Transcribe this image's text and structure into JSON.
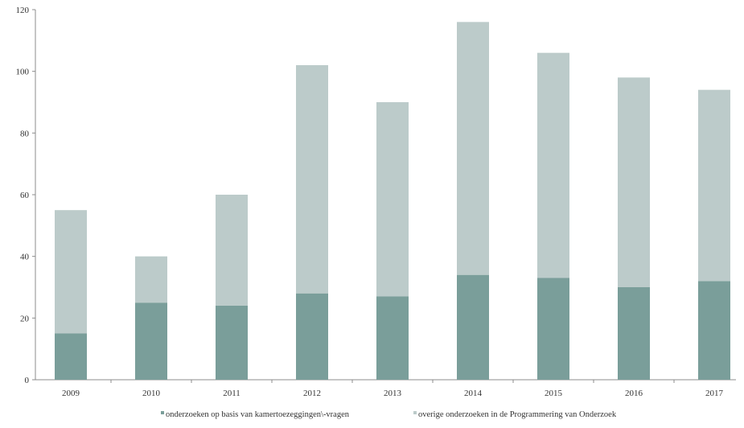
{
  "chart_data": {
    "type": "bar",
    "stacked": true,
    "categories": [
      "2009",
      "2010",
      "2011",
      "2012",
      "2013",
      "2014",
      "2015",
      "2016",
      "2017"
    ],
    "series": [
      {
        "name": "onderzoeken op basis van kamertoezeggingen\\-vragen",
        "values": [
          15,
          25,
          24,
          28,
          27,
          34,
          33,
          30,
          32
        ],
        "color": "#7a9e9a"
      },
      {
        "name": "overige onderzoeken in de Programmering van Onderzoek",
        "values": [
          40,
          15,
          36,
          74,
          63,
          82,
          73,
          68,
          62
        ],
        "color": "#bccbca"
      }
    ],
    "yticks": [
      0,
      20,
      40,
      60,
      80,
      100,
      120
    ],
    "ylim": [
      0,
      120
    ],
    "grid": false,
    "legend_position": "bottom",
    "title": "",
    "xlabel": "",
    "ylabel": ""
  }
}
